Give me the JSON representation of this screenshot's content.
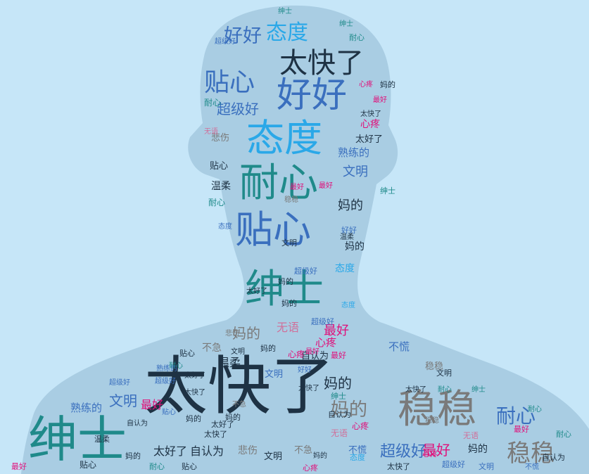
{
  "colors": {
    "background": "#c6e6f8",
    "silhouette": "#a9cde3",
    "navy": "#1e3244",
    "teal": "#1f8a8a",
    "sky": "#2aa8e8",
    "blue": "#3a6fbe",
    "gray": "#7a7a7a",
    "pink": "#e0107a",
    "rose": "#d0709a"
  },
  "words": [
    {
      "text": "好好",
      "color": "blue"
    },
    {
      "text": "态度",
      "color": "sky"
    },
    {
      "text": "耐心",
      "color": "teal"
    },
    {
      "text": "太快了",
      "color": "navy"
    },
    {
      "text": "贴心",
      "color": "blue"
    },
    {
      "text": "好好",
      "color": "blue"
    },
    {
      "text": "超级好",
      "color": "blue"
    },
    {
      "text": "心疼",
      "color": "pink"
    },
    {
      "text": "态度",
      "color": "sky"
    },
    {
      "text": "熟练的",
      "color": "blue"
    },
    {
      "text": "文明",
      "color": "blue"
    },
    {
      "text": "耐心",
      "color": "teal"
    },
    {
      "text": "温柔",
      "color": "navy"
    },
    {
      "text": "妈的",
      "color": "navy"
    },
    {
      "text": "贴心",
      "color": "blue"
    },
    {
      "text": "妈的",
      "color": "navy"
    },
    {
      "text": "绅士",
      "color": "teal"
    },
    {
      "text": "态度",
      "color": "sky"
    },
    {
      "text": "妈的",
      "color": "gray"
    },
    {
      "text": "无语",
      "color": "rose"
    },
    {
      "text": "最好",
      "color": "pink"
    },
    {
      "text": "心疼",
      "color": "pink"
    },
    {
      "text": "不急",
      "color": "gray"
    },
    {
      "text": "自认为",
      "color": "navy"
    },
    {
      "text": "不慌",
      "color": "blue"
    },
    {
      "text": "温柔",
      "color": "navy"
    },
    {
      "text": "文明",
      "color": "blue"
    },
    {
      "text": "太快了",
      "color": "navy"
    },
    {
      "text": "妈的",
      "color": "navy"
    },
    {
      "text": "稳稳",
      "color": "gray"
    },
    {
      "text": "熟练的",
      "color": "blue"
    },
    {
      "text": "文明",
      "color": "blue"
    },
    {
      "text": "最好",
      "color": "pink"
    },
    {
      "text": "妈的",
      "color": "gray"
    },
    {
      "text": "耐心",
      "color": "blue"
    },
    {
      "text": "绅士",
      "color": "teal"
    },
    {
      "text": "太好了",
      "color": "navy"
    },
    {
      "text": "自认为",
      "color": "navy"
    },
    {
      "text": "超级好",
      "color": "blue"
    },
    {
      "text": "最好",
      "color": "pink"
    },
    {
      "text": "妈的",
      "color": "navy"
    },
    {
      "text": "稳稳",
      "color": "gray"
    },
    {
      "text": "悲伤",
      "color": "gray"
    },
    {
      "text": "不急",
      "color": "gray"
    },
    {
      "text": "不慌",
      "color": "blue"
    },
    {
      "text": "文明",
      "color": "navy"
    },
    {
      "text": "贴心",
      "color": "navy"
    },
    {
      "text": "温柔",
      "color": "navy"
    },
    {
      "text": "耐心",
      "color": "teal"
    },
    {
      "text": "太快了",
      "color": "navy"
    },
    {
      "text": "悲伤",
      "color": "gray"
    },
    {
      "text": "太好了",
      "color": "navy"
    },
    {
      "text": "最好",
      "color": "pink"
    },
    {
      "text": "无语",
      "color": "rose"
    },
    {
      "text": "妈的",
      "color": "navy"
    },
    {
      "text": "贴心",
      "color": "navy"
    },
    {
      "text": "心疼",
      "color": "pink"
    },
    {
      "text": "超级好",
      "color": "blue"
    },
    {
      "text": "绅士",
      "color": "teal"
    },
    {
      "text": "耐心",
      "color": "teal"
    },
    {
      "text": "态度",
      "color": "blue"
    },
    {
      "text": "文明",
      "color": "navy"
    },
    {
      "text": "最好",
      "color": "pink"
    },
    {
      "text": "好好",
      "color": "blue"
    },
    {
      "text": "超级好",
      "color": "blue"
    },
    {
      "text": "熟练的",
      "color": "blue"
    },
    {
      "text": "太好了",
      "color": "navy"
    },
    {
      "text": "妈的",
      "color": "navy"
    },
    {
      "text": "绅士",
      "color": "teal"
    },
    {
      "text": "稳稳",
      "color": "gray"
    },
    {
      "text": "贴心",
      "color": "navy"
    },
    {
      "text": "妈的",
      "color": "navy"
    },
    {
      "text": "自认为",
      "color": "navy"
    },
    {
      "text": "态度",
      "color": "sky"
    },
    {
      "text": "最好",
      "color": "pink"
    },
    {
      "text": "不急",
      "color": "gray"
    },
    {
      "text": "心疼",
      "color": "pink"
    },
    {
      "text": "妈的",
      "color": "navy"
    },
    {
      "text": "耐心",
      "color": "teal"
    },
    {
      "text": "太快了",
      "color": "navy"
    },
    {
      "text": "绅士",
      "color": "teal"
    },
    {
      "text": "超级好",
      "color": "blue"
    },
    {
      "text": "最好",
      "color": "pink"
    },
    {
      "text": "文明",
      "color": "navy"
    },
    {
      "text": "耐心",
      "color": "teal"
    },
    {
      "text": "好好",
      "color": "blue"
    },
    {
      "text": "超级好",
      "color": "blue"
    },
    {
      "text": "温柔",
      "color": "navy"
    },
    {
      "text": "贴心",
      "color": "blue"
    },
    {
      "text": "悲伤",
      "color": "gray"
    },
    {
      "text": "太快了",
      "color": "navy"
    },
    {
      "text": "稳稳",
      "color": "gray"
    },
    {
      "text": "妈的",
      "color": "navy"
    },
    {
      "text": "无语",
      "color": "rose"
    },
    {
      "text": "耐心",
      "color": "teal"
    },
    {
      "text": "贴心",
      "color": "navy"
    },
    {
      "text": "太快了",
      "color": "navy"
    },
    {
      "text": "绅士",
      "color": "teal"
    },
    {
      "text": "文明",
      "color": "navy"
    },
    {
      "text": "自认为",
      "color": "navy"
    },
    {
      "text": "妈的",
      "color": "navy"
    },
    {
      "text": "绅士",
      "color": "teal"
    },
    {
      "text": "态度",
      "color": "sky"
    },
    {
      "text": "心疼",
      "color": "pink"
    },
    {
      "text": "自认为",
      "color": "navy"
    },
    {
      "text": "太快了",
      "color": "navy"
    },
    {
      "text": "心疼",
      "color": "pink"
    },
    {
      "text": "文明",
      "color": "blue"
    },
    {
      "text": "超级好",
      "color": "blue"
    },
    {
      "text": "最好",
      "color": "pink"
    },
    {
      "text": "耐心",
      "color": "teal"
    },
    {
      "text": "妈的",
      "color": "navy"
    },
    {
      "text": "稳稳",
      "color": "gray"
    },
    {
      "text": "最好",
      "color": "pink"
    },
    {
      "text": "无语",
      "color": "rose"
    },
    {
      "text": "耐心",
      "color": "teal"
    },
    {
      "text": "心疼",
      "color": "pink"
    },
    {
      "text": "太快了",
      "color": "navy"
    },
    {
      "text": "不慌",
      "color": "blue"
    },
    {
      "text": "太好了",
      "color": "navy"
    },
    {
      "text": "妈的",
      "color": "navy"
    },
    {
      "text": "超级好",
      "color": "blue"
    },
    {
      "text": "太好了",
      "color": "navy"
    },
    {
      "text": "最好",
      "color": "pink"
    },
    {
      "text": "超级好",
      "color": "blue"
    }
  ]
}
